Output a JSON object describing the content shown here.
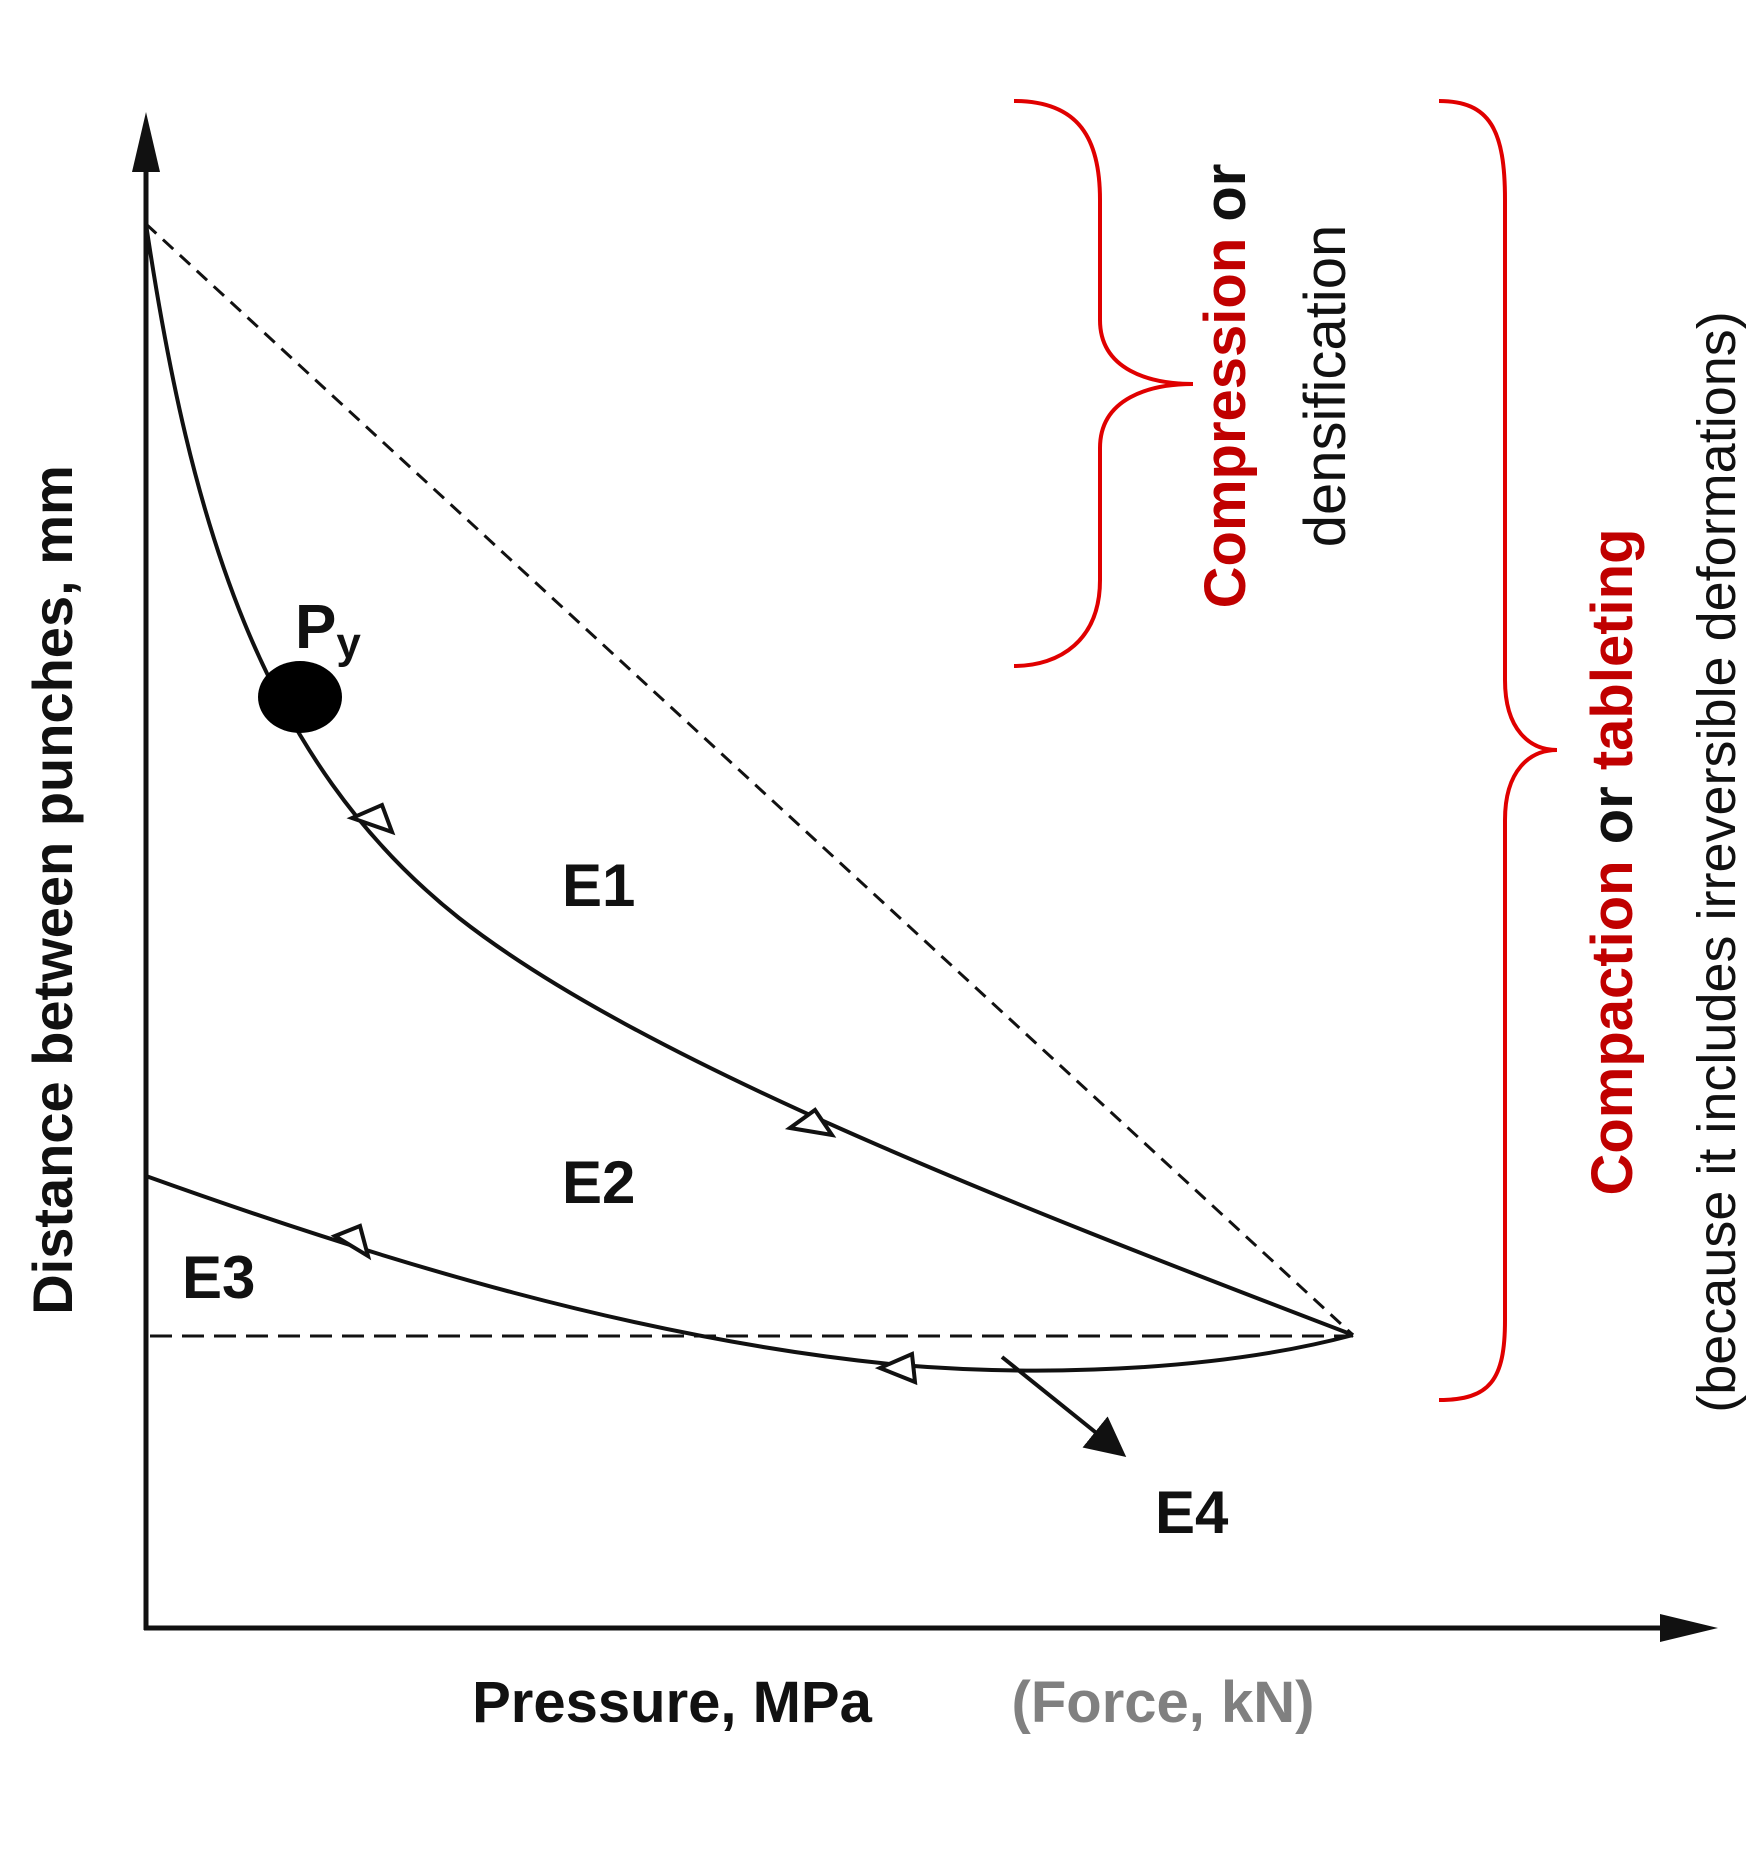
{
  "axes": {
    "y_label": "Distance between punches, mm",
    "x_label": "Pressure, MPa",
    "x_label_secondary": "(Force, kN)"
  },
  "point_label": {
    "main": "P",
    "sub": "y"
  },
  "regions": {
    "e1": "E1",
    "e2": "E2",
    "e3": "E3",
    "e4": "E4"
  },
  "brace_compression": {
    "term": "Compression",
    "connector": " or",
    "alt": "densification"
  },
  "brace_compaction": {
    "term1": "Compaction",
    "connector": " or ",
    "term2": "tableting",
    "note": "(because it includes irreversible deformations)"
  },
  "colors": {
    "accent": "#e00000",
    "line": "#111111",
    "secondary_label": "#808080"
  }
}
